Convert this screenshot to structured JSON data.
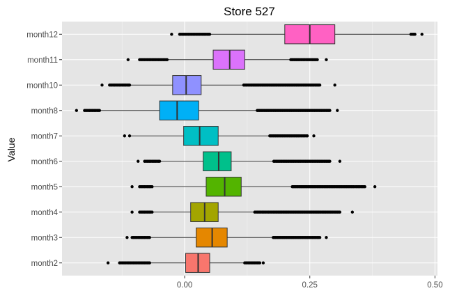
{
  "chart_data": {
    "type": "boxplot",
    "title": "Store 527",
    "xlabel": "",
    "ylabel": "Value",
    "orientation": "horizontal",
    "xlim": [
      -0.245,
      0.505
    ],
    "x_ticks": [
      0.0,
      0.25,
      0.5
    ],
    "x_tick_labels": [
      "0.00",
      "0.25",
      "0.50"
    ],
    "grid": true,
    "legend": "none",
    "categories": [
      "month2",
      "month3",
      "month4",
      "month5",
      "month6",
      "month7",
      "month8",
      "month10",
      "month11",
      "month12"
    ],
    "series": [
      {
        "category": "month12",
        "color": "#ff61c3",
        "whisker_low": -0.01,
        "q1": 0.2,
        "median": 0.25,
        "q3": 0.3,
        "whisker_high": 0.45,
        "outliers_low": [
          -0.026,
          -0.01,
          0.0,
          0.01,
          0.02,
          0.03,
          0.05
        ],
        "outliers_high": [
          0.452,
          0.46,
          0.474
        ]
      },
      {
        "category": "month11",
        "color": "#db72fb",
        "whisker_low": -0.035,
        "q1": 0.057,
        "median": 0.09,
        "q3": 0.12,
        "whisker_high": 0.21,
        "outliers_low": [
          -0.113,
          -0.09,
          -0.07,
          -0.05,
          -0.035
        ],
        "outliers_high": [
          0.212,
          0.23,
          0.25,
          0.265,
          0.283
        ]
      },
      {
        "category": "month10",
        "color": "#8f91ff",
        "whisker_low": -0.11,
        "q1": -0.024,
        "median": 0.003,
        "q3": 0.033,
        "whisker_high": 0.12,
        "outliers_low": [
          -0.165,
          -0.15,
          -0.13,
          -0.11
        ],
        "outliers_high": [
          0.118,
          0.125,
          0.13,
          0.18,
          0.23,
          0.27,
          0.3
        ]
      },
      {
        "category": "month8",
        "color": "#00b0f6",
        "whisker_low": -0.17,
        "q1": -0.05,
        "median": -0.015,
        "q3": 0.028,
        "whisker_high": 0.145,
        "outliers_low": [
          -0.216,
          -0.2,
          -0.185,
          -0.17
        ],
        "outliers_high": [
          0.145,
          0.2,
          0.25,
          0.29,
          0.305
        ]
      },
      {
        "category": "month7",
        "color": "#00bfc4",
        "whisker_low": -0.11,
        "q1": -0.002,
        "median": 0.03,
        "q3": 0.067,
        "whisker_high": 0.17,
        "outliers_low": [
          -0.12,
          -0.11
        ],
        "outliers_high": [
          0.17,
          0.2,
          0.23,
          0.245,
          0.258
        ]
      },
      {
        "category": "month6",
        "color": "#00c08b",
        "whisker_low": -0.05,
        "q1": 0.037,
        "median": 0.068,
        "q3": 0.093,
        "whisker_high": 0.178,
        "outliers_low": [
          -0.093,
          -0.08,
          -0.065,
          -0.05
        ],
        "outliers_high": [
          0.178,
          0.22,
          0.26,
          0.29,
          0.31
        ]
      },
      {
        "category": "month5",
        "color": "#53b400",
        "whisker_low": -0.065,
        "q1": 0.043,
        "median": 0.08,
        "q3": 0.113,
        "whisker_high": 0.215,
        "outliers_low": [
          -0.105,
          -0.09,
          -0.08,
          -0.065
        ],
        "outliers_high": [
          0.215,
          0.26,
          0.3,
          0.34,
          0.36,
          0.38
        ]
      },
      {
        "category": "month4",
        "color": "#a3a500",
        "whisker_low": -0.065,
        "q1": 0.012,
        "median": 0.04,
        "q3": 0.067,
        "whisker_high": 0.14,
        "outliers_low": [
          -0.105,
          -0.09,
          -0.075,
          -0.065
        ],
        "outliers_high": [
          0.14,
          0.155,
          0.165,
          0.18,
          0.22,
          0.27,
          0.31,
          0.335
        ]
      },
      {
        "category": "month3",
        "color": "#e58700",
        "whisker_low": -0.07,
        "q1": 0.023,
        "median": 0.055,
        "q3": 0.085,
        "whisker_high": 0.177,
        "outliers_low": [
          -0.115,
          -0.105,
          -0.09,
          -0.08,
          -0.07
        ],
        "outliers_high": [
          0.177,
          0.22,
          0.25,
          0.27,
          0.283
        ]
      },
      {
        "category": "month2",
        "color": "#f8766d",
        "whisker_low": -0.07,
        "q1": 0.002,
        "median": 0.027,
        "q3": 0.05,
        "whisker_high": 0.12,
        "outliers_low": [
          -0.153,
          -0.13,
          -0.11,
          -0.09,
          -0.07
        ],
        "outliers_high": [
          0.12,
          0.13,
          0.14,
          0.15,
          0.157
        ]
      }
    ]
  }
}
